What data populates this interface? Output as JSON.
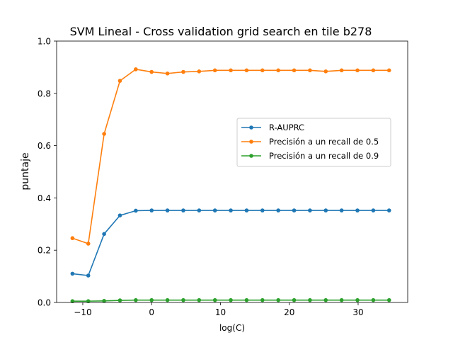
{
  "chart_data": {
    "type": "line",
    "title": "SVM Lineal - Cross validation grid search en tile b278",
    "xlabel": "log(C)",
    "ylabel": "puntaje",
    "xlim": [
      -13.8,
      37.2
    ],
    "ylim": [
      0.0,
      1.0
    ],
    "xticks": [
      -10,
      0,
      10,
      20,
      30
    ],
    "xtick_labels": [
      "−10",
      "0",
      "10",
      "20",
      "30"
    ],
    "yticks": [
      0.0,
      0.2,
      0.4,
      0.6,
      0.8,
      1.0
    ],
    "ytick_labels": [
      "0.0",
      "0.2",
      "0.4",
      "0.6",
      "0.8",
      "1.0"
    ],
    "grid": false,
    "legend_position": "center-right",
    "x": [
      -11.5,
      -9.2,
      -6.9,
      -4.6,
      -2.3,
      0.0,
      2.3,
      4.6,
      6.9,
      9.2,
      11.5,
      13.8,
      16.1,
      18.4,
      20.7,
      23.0,
      25.3,
      27.6,
      29.9,
      32.2,
      34.5
    ],
    "series": [
      {
        "name": "R-AUPRC",
        "color": "#1f77b4",
        "values": [
          0.11,
          0.103,
          0.262,
          0.333,
          0.351,
          0.352,
          0.352,
          0.352,
          0.352,
          0.352,
          0.352,
          0.352,
          0.352,
          0.352,
          0.352,
          0.352,
          0.352,
          0.352,
          0.352,
          0.352,
          0.352
        ]
      },
      {
        "name": "Precisión a un recall de 0.5",
        "color": "#ff7f0e",
        "values": [
          0.246,
          0.225,
          0.645,
          0.848,
          0.892,
          0.882,
          0.876,
          0.882,
          0.884,
          0.888,
          0.888,
          0.888,
          0.888,
          0.888,
          0.888,
          0.888,
          0.884,
          0.888,
          0.888,
          0.888,
          0.888
        ]
      },
      {
        "name": "Precisión a un recall de 0.9",
        "color": "#2ca02c",
        "values": [
          0.005,
          0.005,
          0.006,
          0.008,
          0.009,
          0.009,
          0.009,
          0.009,
          0.009,
          0.009,
          0.009,
          0.009,
          0.009,
          0.009,
          0.009,
          0.009,
          0.009,
          0.009,
          0.009,
          0.009,
          0.009
        ]
      }
    ]
  }
}
